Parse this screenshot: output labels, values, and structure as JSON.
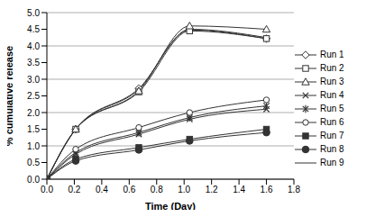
{
  "chart_data": {
    "type": "line",
    "x_label": "Time (Day)",
    "y_label": "% cumulative release",
    "x": [
      0,
      0.21,
      0.67,
      1.04,
      1.6
    ],
    "xlim": [
      0,
      1.8
    ],
    "xticks": [
      {
        "value": 0,
        "label": "0.0"
      },
      {
        "value": 0.2,
        "label": "0.2"
      },
      {
        "value": 0.4,
        "label": "0.4"
      },
      {
        "value": 0.6,
        "label": "0.6"
      },
      {
        "value": 0.8,
        "label": "0.8"
      },
      {
        "value": 1,
        "label": "1.0"
      },
      {
        "value": 1.2,
        "label": "1.2"
      },
      {
        "value": 1.4,
        "label": "1.4"
      },
      {
        "value": 1.6,
        "label": "1.6"
      },
      {
        "value": 1.8,
        "label": "1.8"
      }
    ],
    "ylim": [
      0,
      5
    ],
    "yticks": [
      {
        "value": 0,
        "label": "0.0"
      },
      {
        "value": 0.5,
        "label": "0.5"
      },
      {
        "value": 1,
        "label": "1.0"
      },
      {
        "value": 1.5,
        "label": "1.5"
      },
      {
        "value": 2,
        "label": "2.0"
      },
      {
        "value": 2.5,
        "label": "2.5"
      },
      {
        "value": 3,
        "label": "3.0"
      },
      {
        "value": 3.5,
        "label": "3.5"
      },
      {
        "value": 4,
        "label": "4.0"
      },
      {
        "value": 4.5,
        "label": "4.5"
      },
      {
        "value": 5,
        "label": "5.0"
      }
    ],
    "grid": true,
    "legend": "right",
    "series": [
      {
        "name": "Run 1",
        "color": "#333333",
        "marker": "diamond",
        "values": [
          0,
          1.5,
          2.72,
          4.48,
          4.22
        ]
      },
      {
        "name": "Run 2",
        "color": "#333333",
        "marker": "square",
        "values": [
          0,
          1.5,
          2.62,
          4.45,
          4.22
        ]
      },
      {
        "name": "Run 3",
        "color": "#333333",
        "marker": "triangle",
        "values": [
          0,
          1.5,
          2.65,
          4.6,
          4.5
        ]
      },
      {
        "name": "Run 4",
        "color": "#333333",
        "marker": "x",
        "values": [
          0,
          0.75,
          1.35,
          1.8,
          2.1
        ]
      },
      {
        "name": "Run 5",
        "color": "#333333",
        "marker": "star",
        "values": [
          0,
          0.8,
          1.4,
          1.85,
          2.2
        ]
      },
      {
        "name": "Run 6",
        "color": "#333333",
        "marker": "circle",
        "values": [
          0,
          0.9,
          1.55,
          2.0,
          2.38
        ]
      },
      {
        "name": "Run 7",
        "color": "#333333",
        "marker": "filled_square",
        "values": [
          0,
          0.6,
          0.95,
          1.2,
          1.5
        ]
      },
      {
        "name": "Run 8",
        "color": "#333333",
        "marker": "filled_circle",
        "values": [
          0,
          0.55,
          0.88,
          1.15,
          1.4
        ]
      },
      {
        "name": "Run 9",
        "color": "#333333",
        "marker": "none",
        "values": [
          0,
          1.5,
          2.7,
          4.5,
          4.25
        ]
      }
    ]
  }
}
